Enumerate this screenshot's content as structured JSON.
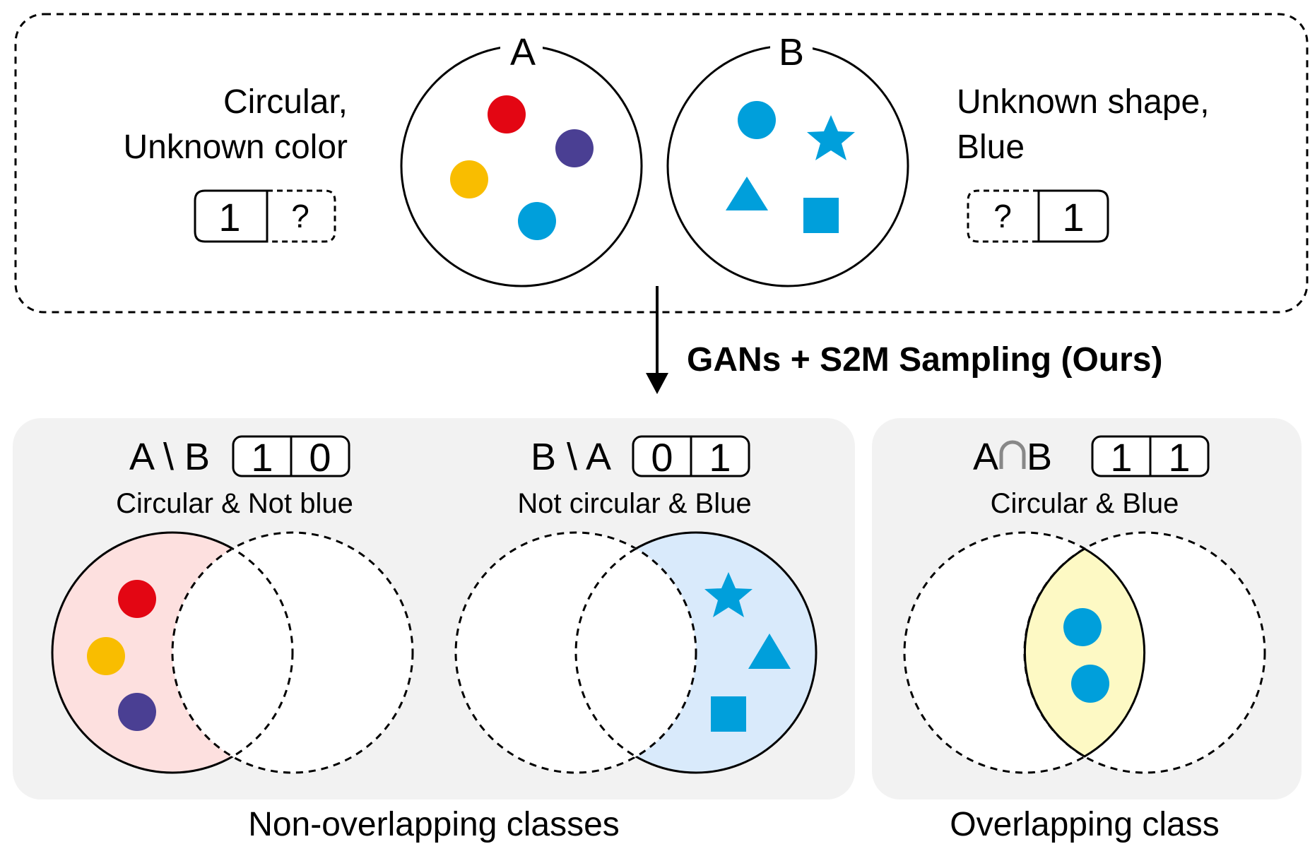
{
  "top_panel": {
    "left_desc": [
      "Circular,",
      "Unknown color"
    ],
    "right_desc": [
      "Unknown shape,",
      "Blue"
    ],
    "left_code": [
      "1",
      "?"
    ],
    "right_code": [
      "?",
      "1"
    ],
    "circle_a_label": "A",
    "circle_b_label": "B"
  },
  "arrow_label": "GANs + S2M Sampling (Ours)",
  "classes": [
    {
      "title": "A \\ B",
      "code": [
        "1",
        "0"
      ],
      "desc": "Circular & Not blue",
      "fill": "#fde0df"
    },
    {
      "title": "B \\ A",
      "code": [
        "0",
        "1"
      ],
      "desc": "Not circular & Blue",
      "fill": "#d9eafb"
    },
    {
      "title_a": "A",
      "title_b": "B",
      "code": [
        "1",
        "1"
      ],
      "desc": "Circular & Blue",
      "fill": "#fdf9c4"
    }
  ],
  "captions": {
    "non_overlapping": "Non-overlapping classes",
    "overlapping": "Overlapping class"
  },
  "colors": {
    "red": "#e30613",
    "yellow": "#f9bd00",
    "purple": "#4a3f93",
    "blue": "#009fdb",
    "panel_bg": "#f2f2f2"
  }
}
